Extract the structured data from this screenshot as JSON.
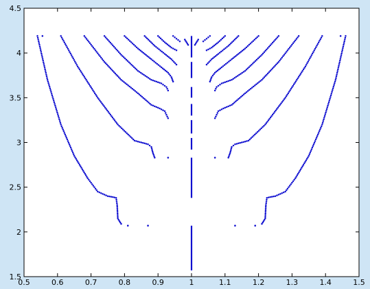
{
  "chart_data": {
    "type": "scatter",
    "title": "",
    "xlabel": "",
    "ylabel": "",
    "xlim": [
      0.5,
      1.5
    ],
    "ylim": [
      1.5,
      4.5
    ],
    "xticks": [
      "0.5",
      "0.6",
      "0.7",
      "0.8",
      "0.9",
      "1",
      "1.1",
      "1.2",
      "1.3",
      "1.4",
      "1.5"
    ],
    "yticks": [
      "1.5",
      "2",
      "2.5",
      "3",
      "3.5",
      "4",
      "4.5"
    ],
    "grid": false,
    "marker_color": "#1010d0",
    "series": [
      {
        "style": "dotted-curve",
        "x": [
          0.54,
          0.57,
          0.61,
          0.65,
          0.69,
          0.72,
          0.75,
          0.765,
          0.775,
          0.778,
          0.78,
          0.79
        ],
        "y": [
          4.19,
          3.7,
          3.2,
          2.85,
          2.6,
          2.45,
          2.4,
          2.39,
          2.38,
          2.3,
          2.15,
          2.09
        ]
      },
      {
        "style": "dotted-curve",
        "x": [
          1.46,
          1.43,
          1.39,
          1.35,
          1.31,
          1.28,
          1.25,
          1.235,
          1.225,
          1.222,
          1.22,
          1.21
        ],
        "y": [
          4.19,
          3.7,
          3.2,
          2.85,
          2.6,
          2.45,
          2.4,
          2.39,
          2.38,
          2.3,
          2.15,
          2.09
        ]
      },
      {
        "style": "dotted-curve",
        "x": [
          0.61,
          0.66,
          0.72,
          0.78,
          0.83,
          0.87,
          0.88,
          0.885,
          0.89
        ],
        "y": [
          4.19,
          3.85,
          3.5,
          3.2,
          3.02,
          2.98,
          2.95,
          2.88,
          2.83
        ]
      },
      {
        "style": "dotted-curve",
        "x": [
          1.39,
          1.34,
          1.28,
          1.22,
          1.17,
          1.13,
          1.12,
          1.115,
          1.11
        ],
        "y": [
          4.19,
          3.85,
          3.5,
          3.2,
          3.02,
          2.98,
          2.95,
          2.88,
          2.83
        ]
      },
      {
        "style": "dotted-curve",
        "x": [
          0.68,
          0.74,
          0.79,
          0.84,
          0.88,
          0.905,
          0.92,
          0.93
        ],
        "y": [
          4.19,
          3.9,
          3.7,
          3.55,
          3.42,
          3.38,
          3.35,
          3.27
        ]
      },
      {
        "style": "dotted-curve",
        "x": [
          1.32,
          1.26,
          1.21,
          1.16,
          1.12,
          1.095,
          1.08,
          1.07
        ],
        "y": [
          4.19,
          3.9,
          3.7,
          3.55,
          3.42,
          3.38,
          3.35,
          3.27
        ]
      },
      {
        "style": "dotted-curve",
        "x": [
          0.74,
          0.79,
          0.84,
          0.88,
          0.91,
          0.925,
          0.93
        ],
        "y": [
          4.19,
          3.98,
          3.8,
          3.7,
          3.66,
          3.62,
          3.58
        ]
      },
      {
        "style": "dotted-curve",
        "x": [
          1.26,
          1.21,
          1.16,
          1.12,
          1.09,
          1.075,
          1.07
        ],
        "y": [
          4.19,
          3.98,
          3.8,
          3.7,
          3.66,
          3.62,
          3.58
        ]
      },
      {
        "style": "dotted-curve",
        "x": [
          0.8,
          0.84,
          0.88,
          0.91,
          0.93,
          0.94,
          0.945
        ],
        "y": [
          4.19,
          4.05,
          3.93,
          3.84,
          3.78,
          3.73,
          3.68
        ]
      },
      {
        "style": "dotted-curve",
        "x": [
          1.2,
          1.16,
          1.12,
          1.09,
          1.07,
          1.06,
          1.055
        ],
        "y": [
          4.19,
          4.05,
          3.93,
          3.84,
          3.78,
          3.73,
          3.68
        ]
      },
      {
        "style": "dotted-curve",
        "x": [
          0.86,
          0.89,
          0.92,
          0.94,
          0.955
        ],
        "y": [
          4.19,
          4.08,
          3.99,
          3.93,
          3.87
        ]
      },
      {
        "style": "dotted-curve",
        "x": [
          1.14,
          1.11,
          1.08,
          1.06,
          1.045
        ],
        "y": [
          4.19,
          4.08,
          3.99,
          3.93,
          3.87
        ]
      },
      {
        "style": "dotted-curve",
        "x": [
          0.9,
          0.92,
          0.94,
          0.955
        ],
        "y": [
          4.19,
          4.12,
          4.06,
          4.03
        ]
      },
      {
        "style": "dotted-curve",
        "x": [
          1.1,
          1.08,
          1.06,
          1.045
        ],
        "y": [
          4.19,
          4.12,
          4.06,
          4.03
        ]
      },
      {
        "style": "dotted-curve",
        "x": [
          0.945,
          0.955,
          0.965
        ],
        "y": [
          4.19,
          4.16,
          4.13
        ]
      },
      {
        "style": "dotted-curve",
        "x": [
          1.055,
          1.045,
          1.035
        ],
        "y": [
          4.19,
          4.16,
          4.13
        ]
      },
      {
        "style": "dotted-curve",
        "x": [
          0.98,
          0.99
        ],
        "y": [
          4.15,
          4.09
        ]
      },
      {
        "style": "dotted-curve",
        "x": [
          1.02,
          1.01
        ],
        "y": [
          4.15,
          4.09
        ]
      },
      {
        "style": "vertical-segment",
        "x": [
          1.0,
          1.0
        ],
        "y": [
          4.19,
          3.95
        ]
      },
      {
        "style": "vertical-segment",
        "x": [
          1.0,
          1.0
        ],
        "y": [
          3.9,
          3.72
        ]
      },
      {
        "style": "vertical-segment",
        "x": [
          1.0,
          1.0
        ],
        "y": [
          3.62,
          3.5
        ]
      },
      {
        "style": "vertical-segment",
        "x": [
          1.0,
          1.0
        ],
        "y": [
          3.43,
          3.3
        ]
      },
      {
        "style": "vertical-segment",
        "x": [
          1.0,
          1.0
        ],
        "y": [
          3.25,
          3.1
        ]
      },
      {
        "style": "vertical-segment",
        "x": [
          1.0,
          1.0
        ],
        "y": [
          3.05,
          2.92
        ]
      },
      {
        "style": "vertical-segment",
        "x": [
          1.0,
          1.0
        ],
        "y": [
          2.83,
          2.38
        ]
      },
      {
        "style": "vertical-segment",
        "x": [
          1.0,
          1.0
        ],
        "y": [
          2.07,
          1.57
        ]
      },
      {
        "style": "isolated-points",
        "x": [
          0.81,
          0.87,
          0.93,
          1.07,
          1.13,
          1.19,
          0.555,
          1.445
        ],
        "y": [
          2.07,
          2.07,
          2.83,
          2.83,
          2.07,
          2.07,
          4.19,
          4.19
        ]
      }
    ]
  }
}
